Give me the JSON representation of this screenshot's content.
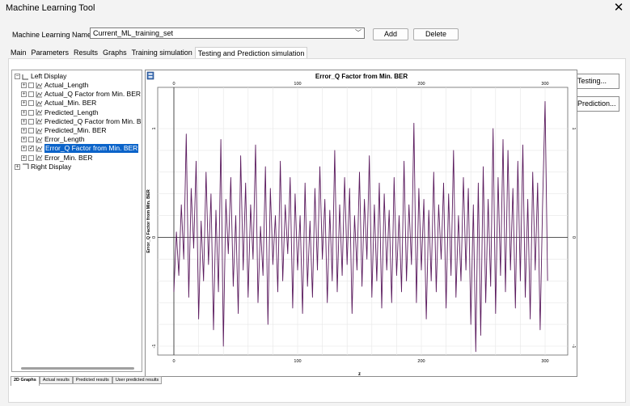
{
  "window": {
    "title": "Machine Learning Tool"
  },
  "form": {
    "ml_name_label": "Machine Learning Name:",
    "ml_name_value": "Current_ML_training_set",
    "add_label": "Add",
    "delete_label": "Delete"
  },
  "tabs": [
    {
      "label": "Main"
    },
    {
      "label": "Parameters"
    },
    {
      "label": "Results"
    },
    {
      "label": "Graphs"
    },
    {
      "label": "Training simulation"
    },
    {
      "label": "Testing and Prediction simulation"
    }
  ],
  "tree": {
    "root_left": "Left Display",
    "root_right": "Right Display",
    "items": [
      {
        "label": "Actual_Length",
        "checked": false,
        "selected": false
      },
      {
        "label": "Actual_Q Factor from Min. BER",
        "checked": false,
        "selected": false
      },
      {
        "label": "Actual_Min. BER",
        "checked": false,
        "selected": false
      },
      {
        "label": "Predicted_Length",
        "checked": false,
        "selected": false
      },
      {
        "label": "Predicted_Q Factor from Min. BER",
        "checked": false,
        "selected": false
      },
      {
        "label": "Predicted_Min. BER",
        "checked": false,
        "selected": false
      },
      {
        "label": "Error_Length",
        "checked": false,
        "selected": false
      },
      {
        "label": "Error_Q Factor from Min. BER",
        "checked": true,
        "selected": true
      },
      {
        "label": "Error_Min. BER",
        "checked": false,
        "selected": false
      }
    ]
  },
  "side_buttons": {
    "testing_label": "Testing...",
    "prediction_label": "Prediction..."
  },
  "bottom_tabs": [
    {
      "label": "2D Graphs"
    },
    {
      "label": "Actual results"
    },
    {
      "label": "Predicted results"
    },
    {
      "label": "User predicted results"
    }
  ],
  "chart_data": {
    "type": "line",
    "title": "Error_Q Factor from Min. BER",
    "xlabel": "z",
    "ylabel": "Error_Q Factor from Min. BER",
    "xlim": [
      0,
      300
    ],
    "ylim": [
      -1,
      1
    ],
    "x_ticks": [
      "0",
      "100",
      "200",
      "300"
    ],
    "y_ticks": [
      "1",
      "0",
      "-1"
    ],
    "grid": true,
    "line_color": "#5b1b5e",
    "series": [
      {
        "x": [
          0,
          2,
          4,
          6,
          8,
          10,
          12,
          14,
          16,
          18,
          20,
          22,
          24,
          26,
          28,
          30,
          32,
          34,
          36,
          38,
          40,
          42,
          44,
          46,
          48,
          50,
          52,
          54,
          56,
          58,
          60,
          62,
          64,
          66,
          68,
          70,
          72,
          74,
          76,
          78,
          80,
          82,
          84,
          86,
          88,
          90,
          92,
          94,
          96,
          98,
          100,
          102,
          104,
          106,
          108,
          110,
          112,
          114,
          116,
          118,
          120,
          122,
          124,
          126,
          128,
          130,
          132,
          134,
          136,
          138,
          140,
          142,
          144,
          146,
          148,
          150,
          152,
          154,
          156,
          158,
          160,
          162,
          164,
          166,
          168,
          170,
          172,
          174,
          176,
          178,
          180,
          182,
          184,
          186,
          188,
          190,
          192,
          194,
          196,
          198,
          200,
          202,
          204,
          206,
          208,
          210,
          212,
          214,
          216,
          218,
          220,
          222,
          224,
          226,
          228,
          230,
          232,
          234,
          236,
          238,
          240,
          242,
          244,
          246,
          248,
          250,
          252,
          254,
          256,
          258,
          260,
          262,
          264,
          266,
          268,
          270,
          272,
          274,
          276,
          278,
          280,
          282,
          284,
          286,
          288,
          290,
          292,
          294,
          296,
          298,
          300,
          302
        ],
        "values": [
          -0.5,
          0.05,
          -0.35,
          0.3,
          -0.2,
          0.95,
          -0.55,
          0.45,
          -0.1,
          0.7,
          -0.75,
          0.15,
          -0.4,
          0.6,
          -0.25,
          0.4,
          -0.85,
          0.25,
          -0.5,
          0.9,
          -1.0,
          0.35,
          -0.15,
          0.55,
          -0.45,
          0.2,
          -0.7,
          0.75,
          -0.3,
          0.5,
          -0.55,
          0.3,
          -0.2,
          0.85,
          -0.6,
          0.1,
          -0.35,
          0.65,
          -0.8,
          0.45,
          -0.25,
          0.2,
          -0.5,
          0.7,
          -0.4,
          0.3,
          -0.15,
          0.55,
          -0.65,
          0.4,
          -0.3,
          0.2,
          -0.7,
          0.5,
          -0.45,
          0.15,
          -0.55,
          0.45,
          -0.3,
          0.65,
          -0.2,
          0.35,
          -0.6,
          0.25,
          -0.4,
          0.8,
          -0.5,
          0.3,
          -0.35,
          0.55,
          -0.25,
          0.45,
          -0.7,
          0.2,
          -0.3,
          0.6,
          -0.45,
          0.35,
          -0.2,
          0.75,
          -0.55,
          0.3,
          -0.4,
          0.5,
          -0.65,
          0.4,
          -0.3,
          0.25,
          -0.6,
          0.55,
          -0.35,
          0.2,
          -0.5,
          0.7,
          -0.4,
          0.3,
          -0.25,
          1.05,
          -0.6,
          0.45,
          -0.3,
          0.35,
          -0.75,
          0.25,
          -0.4,
          0.6,
          -0.5,
          0.3,
          -0.2,
          0.5,
          -0.65,
          0.4,
          -0.35,
          0.8,
          -0.55,
          0.2,
          -0.4,
          0.55,
          -0.3,
          0.45,
          -0.8,
          0.3,
          -1.05,
          0.5,
          -0.9,
          0.65,
          -0.6,
          0.35,
          -0.45,
          1.0,
          -0.7,
          0.55,
          -0.35,
          0.9,
          -0.5,
          0.8,
          -0.3,
          0.45,
          -0.65,
          0.7,
          -0.4,
          0.85,
          -0.55,
          0.35,
          -0.75,
          0.6,
          -0.3,
          0.5,
          -0.85,
          0.3,
          1.25,
          -0.4
        ]
      }
    ]
  }
}
